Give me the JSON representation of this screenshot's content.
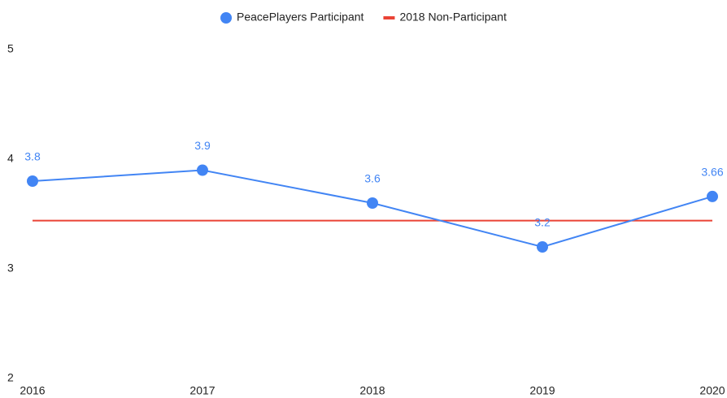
{
  "chart_data": {
    "type": "line",
    "categories": [
      "2016",
      "2017",
      "2018",
      "2019",
      "2020"
    ],
    "series": [
      {
        "name": "PeacePlayers Participant",
        "color": "#4285f4",
        "values": [
          3.8,
          3.9,
          3.6,
          3.2,
          3.66
        ],
        "markers": true,
        "data_labels": true
      },
      {
        "name": "2018 Non-Participant",
        "color": "#ea4335",
        "values": [
          3.44,
          3.44,
          3.44,
          3.44,
          3.44
        ],
        "markers": false,
        "data_labels": false
      }
    ],
    "ylim": [
      2,
      5
    ],
    "yticks": [
      2,
      3,
      4,
      5
    ],
    "grid": false,
    "legend": "top"
  }
}
